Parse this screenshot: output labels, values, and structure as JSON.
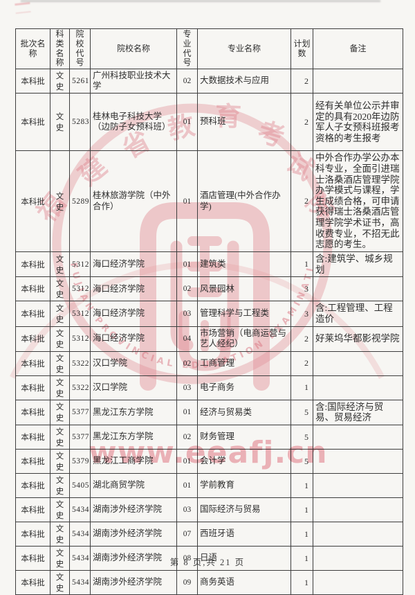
{
  "document": {
    "footer": {
      "text": "第 8 页,共 21 页"
    },
    "watermark": {
      "url_text": "www.eeafj.cn",
      "seal_top_chars": [
        "福",
        "建",
        "省",
        "教",
        "育",
        "考",
        "试",
        "院"
      ],
      "seal_english_text": "FUJIAN PROVINCIAL EDUCATION EXAMINATIONS AUTHORITY",
      "pink_color": "#e8828e"
    },
    "table": {
      "headers": [
        "批次名称",
        "科类\n名称",
        "院校\n代号",
        "院校名称",
        "专业\n代号",
        "专业名称",
        "计划\n数",
        "备注"
      ],
      "rows": [
        {
          "batch": "本科批",
          "category": "文史",
          "college_code": "5261",
          "college_name": "广州科技职业技术大学",
          "major_code": "02",
          "major_name": "大数据技术与应用",
          "plan_count": "2",
          "remark": ""
        },
        {
          "batch": "本科批",
          "category": "文史",
          "college_code": "5283",
          "college_name": "桂林电子科技大学（边防子女预科班）",
          "major_code": "01",
          "major_name": "预科班",
          "plan_count": "2",
          "remark": "经有关单位公示并审定的具有2020年边防军人子女预科班报考资格的考生报考"
        },
        {
          "batch": "本科批",
          "category": "文史",
          "college_code": "5289",
          "college_name": "桂林旅游学院（中外合作）",
          "major_code": "01",
          "major_name": "酒店管理(中外合作办学)",
          "plan_count": "2",
          "remark": "中外合作办学公办本科专业，全面引进瑞士洛桑酒店管理学院办学模式与课程，学生成绩合格，可申请获得瑞士洛桑酒店管理学院学术证书，高收费专业，不招无此志愿的考生。"
        },
        {
          "batch": "本科批",
          "category": "文史",
          "college_code": "5312",
          "college_name": "海口经济学院",
          "major_code": "01",
          "major_name": "建筑类",
          "plan_count": "1",
          "remark": "含:建筑学、城乡规划"
        },
        {
          "batch": "本科批",
          "category": "文史",
          "college_code": "5312",
          "college_name": "海口经济学院",
          "major_code": "02",
          "major_name": "风景园林",
          "plan_count": "3",
          "remark": ""
        },
        {
          "batch": "本科批",
          "category": "文史",
          "college_code": "5312",
          "college_name": "海口经济学院",
          "major_code": "03",
          "major_name": "管理科学与工程类",
          "plan_count": "3",
          "remark": "含:工程管理、工程造价"
        },
        {
          "batch": "本科批",
          "category": "文史",
          "college_code": "5312",
          "college_name": "海口经济学院",
          "major_code": "04",
          "major_name": "市场营销（电商运营与艺人经纪）",
          "plan_count": "2",
          "remark": "好莱坞华都影视学院"
        },
        {
          "batch": "本科批",
          "category": "文史",
          "college_code": "5322",
          "college_name": "汉口学院",
          "major_code": "02",
          "major_name": "工商管理",
          "plan_count": "2",
          "remark": ""
        },
        {
          "batch": "本科批",
          "category": "文史",
          "college_code": "5322",
          "college_name": "汉口学院",
          "major_code": "03",
          "major_name": "电子商务",
          "plan_count": "1",
          "remark": ""
        },
        {
          "batch": "本科批",
          "category": "文史",
          "college_code": "5377",
          "college_name": "黑龙江东方学院",
          "major_code": "01",
          "major_name": "经济与贸易类",
          "plan_count": "5",
          "remark": "含:国际经济与贸易、贸易经济"
        },
        {
          "batch": "本科批",
          "category": "文史",
          "college_code": "5377",
          "college_name": "黑龙江东方学院",
          "major_code": "02",
          "major_name": "财务管理",
          "plan_count": "5",
          "remark": ""
        },
        {
          "batch": "本科批",
          "category": "文史",
          "college_code": "5379",
          "college_name": "黑龙江工商学院",
          "major_code": "01",
          "major_name": "会计学",
          "plan_count": "5",
          "remark": ""
        },
        {
          "batch": "本科批",
          "category": "文史",
          "college_code": "5405",
          "college_name": "湖北商贸学院",
          "major_code": "01",
          "major_name": "学前教育",
          "plan_count": "1",
          "remark": ""
        },
        {
          "batch": "本科批",
          "category": "文史",
          "college_code": "5434",
          "college_name": "湖南涉外经济学院",
          "major_code": "03",
          "major_name": "国际经济与贸易",
          "plan_count": "1",
          "remark": ""
        },
        {
          "batch": "本科批",
          "category": "文史",
          "college_code": "5434",
          "college_name": "湖南涉外经济学院",
          "major_code": "07",
          "major_name": "西班牙语",
          "plan_count": "1",
          "remark": ""
        },
        {
          "batch": "本科批",
          "category": "文史",
          "college_code": "5434",
          "college_name": "湖南涉外经济学院",
          "major_code": "08",
          "major_name": "日语",
          "plan_count": "1",
          "remark": ""
        },
        {
          "batch": "本科批",
          "category": "文史",
          "college_code": "5434",
          "college_name": "湖南涉外经济学院",
          "major_code": "09",
          "major_name": "商务英语",
          "plan_count": "1",
          "remark": ""
        }
      ]
    }
  }
}
